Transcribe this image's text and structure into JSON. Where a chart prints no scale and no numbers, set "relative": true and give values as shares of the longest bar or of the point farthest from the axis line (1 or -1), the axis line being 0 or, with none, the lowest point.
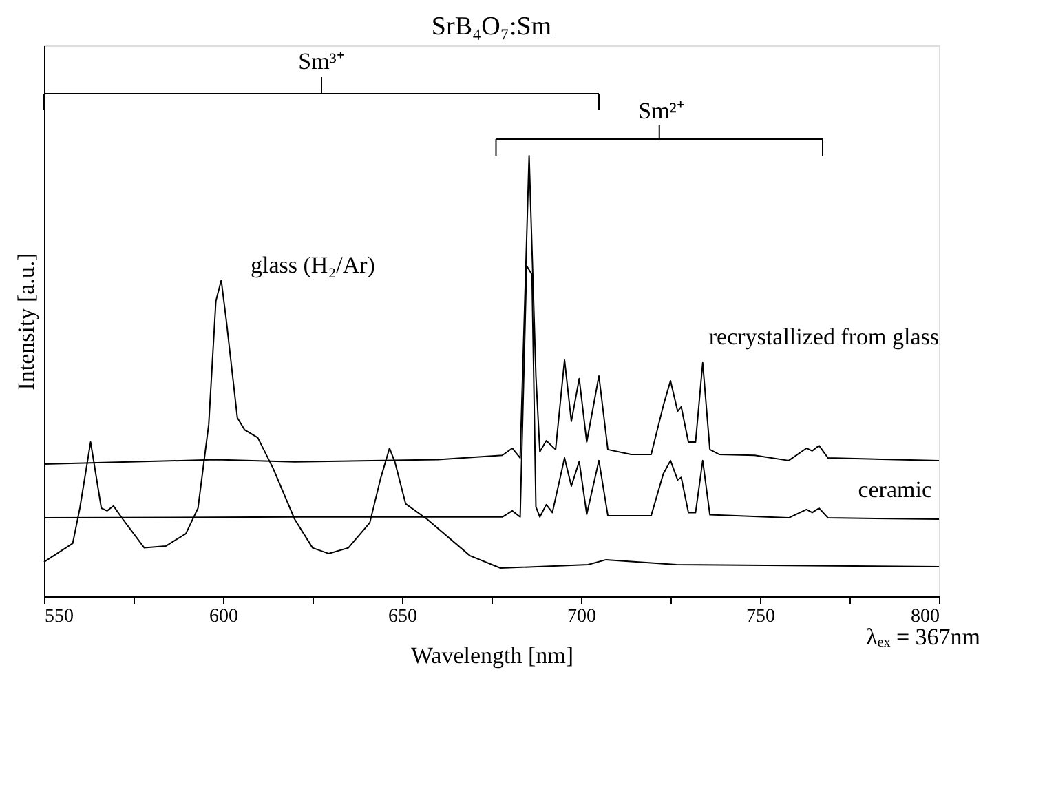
{
  "chart_data": {
    "type": "line",
    "title": "SrB₄O₇:Sm",
    "xlabel": "Wavelength [nm]",
    "ylabel": "Intensity [a.u.]",
    "relative": true,
    "xlim": [
      550,
      800
    ],
    "xticks": [
      550,
      {
        "value": 575,
        "label": null
      },
      600,
      {
        "value": 625,
        "label": null
      },
      650,
      {
        "value": 675,
        "label": null
      },
      700,
      {
        "value": 725,
        "label": null
      },
      750,
      {
        "value": 775,
        "label": null
      },
      800
    ],
    "grid": false,
    "legend": false,
    "marker": "none",
    "line_style": "solid",
    "series": [
      {
        "color": "#000000",
        "x": [
          550,
          558,
          560,
          563,
          566,
          567.6,
          569.4,
          572,
          578,
          584,
          589.6,
          593,
          596,
          598,
          599.5,
          601,
          604,
          606,
          609.7,
          614,
          620,
          625,
          629.5,
          635,
          641,
          644,
          646.5,
          648,
          651,
          657,
          669,
          677.5,
          702,
          707,
          726.6,
          800
        ],
        "values": [
          0.078,
          0.12,
          0.2,
          0.35,
          0.2,
          0.194,
          0.205,
          0.175,
          0.11,
          0.114,
          0.142,
          0.2,
          0.39,
          0.67,
          0.717,
          0.62,
          0.405,
          0.378,
          0.36,
          0.29,
          0.175,
          0.11,
          0.097,
          0.11,
          0.167,
          0.267,
          0.336,
          0.305,
          0.21,
          0.175,
          0.092,
          0.064,
          0.072,
          0.083,
          0.072,
          0.067
        ]
      },
      {
        "color": "#000000",
        "x": [
          550,
          620,
          678,
          680.8,
          683,
          684.8,
          686.3,
          687.4,
          688.5,
          690.3,
          692,
          695.4,
          697.3,
          699.5,
          701.6,
          705,
          707.5,
          719.6,
          723,
          725,
          727,
          728,
          730,
          732,
          734,
          736,
          758,
          763,
          764.6,
          766.5,
          769,
          800
        ],
        "values": [
          0.178,
          0.18,
          0.18,
          0.194,
          0.18,
          0.75,
          0.73,
          0.203,
          0.18,
          0.208,
          0.19,
          0.314,
          0.25,
          0.306,
          0.186,
          0.308,
          0.183,
          0.183,
          0.278,
          0.308,
          0.264,
          0.27,
          0.19,
          0.19,
          0.308,
          0.185,
          0.178,
          0.197,
          0.19,
          0.2,
          0.178,
          0.175
        ]
      },
      {
        "color": "#000000",
        "x": [
          550,
          598,
          620,
          660,
          678,
          680.8,
          683,
          685.5,
          687.4,
          688.5,
          690.3,
          692.9,
          695.4,
          697.3,
          699.5,
          701.6,
          705,
          707.5,
          714,
          719.6,
          723,
          725,
          727,
          728,
          730,
          732,
          734,
          736,
          738.6,
          748.5,
          758,
          763,
          764.6,
          766.5,
          769,
          800
        ],
        "values": [
          0.3,
          0.31,
          0.305,
          0.31,
          0.32,
          0.336,
          0.314,
          1.0,
          0.5,
          0.328,
          0.353,
          0.333,
          0.536,
          0.397,
          0.494,
          0.35,
          0.5,
          0.333,
          0.322,
          0.322,
          0.433,
          0.489,
          0.42,
          0.43,
          0.35,
          0.35,
          0.53,
          0.333,
          0.322,
          0.32,
          0.308,
          0.336,
          0.33,
          0.342,
          0.314,
          0.308
        ]
      }
    ],
    "annotations": [
      "glass (H₂/Ar)",
      "recrystallized from glass",
      "ceramic",
      "λₑₓ = 367nm",
      "Sm³⁺",
      "Sm²⁺"
    ]
  }
}
